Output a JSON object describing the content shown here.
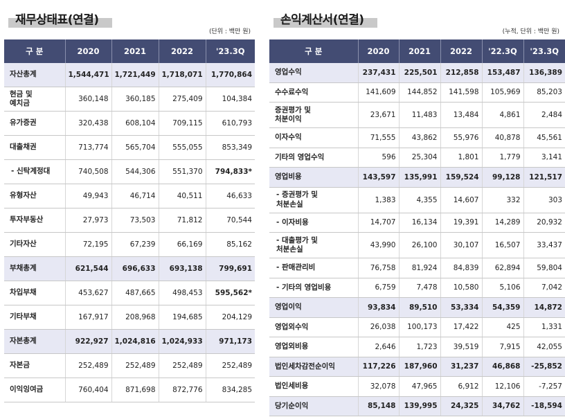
{
  "balance": {
    "title": "재무상태표(연결)",
    "unit": "(단위 : 백만 원)",
    "headers": [
      "구 분",
      "2020",
      "2021",
      "2022",
      "'23.3Q"
    ],
    "rows": [
      {
        "label": "자산총계",
        "v": [
          "1,544,471",
          "1,721,449",
          "1,718,071",
          "1,770,864"
        ]
      },
      {
        "label": "현금 및\n예치금",
        "v": [
          "360,148",
          "360,185",
          "275,409",
          "104,384"
        ]
      },
      {
        "label": "유가증권",
        "v": [
          "320,438",
          "608,104",
          "709,115",
          "610,793"
        ]
      },
      {
        "label": "대출채권",
        "v": [
          "713,774",
          "565,704",
          "555,055",
          "853,349"
        ]
      },
      {
        "label": "- 신탁계정대",
        "v": [
          "740,508",
          "544,306",
          "551,370",
          "794,833*"
        ]
      },
      {
        "label": "유형자산",
        "v": [
          "49,943",
          "46,714",
          "40,511",
          "46,633"
        ]
      },
      {
        "label": "투자부동산",
        "v": [
          "27,973",
          "73,503",
          "71,812",
          "70,544"
        ]
      },
      {
        "label": "기타자산",
        "v": [
          "72,195",
          "67,239",
          "66,169",
          "85,162"
        ]
      },
      {
        "label": "부채총계",
        "v": [
          "621,544",
          "696,633",
          "693,138",
          "799,691"
        ]
      },
      {
        "label": "차입부채",
        "v": [
          "453,627",
          "487,665",
          "498,453",
          "595,562*"
        ]
      },
      {
        "label": "기타부채",
        "v": [
          "167,917",
          "208,968",
          "194,685",
          "204,129"
        ]
      },
      {
        "label": "자본총계",
        "v": [
          "922,927",
          "1,024,816",
          "1,024,933",
          "971,173"
        ]
      },
      {
        "label": "자본금",
        "v": [
          "252,489",
          "252,489",
          "252,489",
          "252,489"
        ]
      },
      {
        "label": "이익잉여금",
        "v": [
          "760,404",
          "871,698",
          "872,776",
          "834,285"
        ]
      }
    ]
  },
  "income": {
    "title": "손익계산서(연결)",
    "unit": "(누적, 단위 : 백만 원)",
    "headers": [
      "구 분",
      "2020",
      "2021",
      "2022",
      "'22.3Q",
      "'23.3Q"
    ],
    "rows": [
      {
        "label": "영업수익",
        "v": [
          "237,431",
          "225,501",
          "212,858",
          "153,487",
          "136,389"
        ]
      },
      {
        "label": "수수료수익",
        "v": [
          "141,609",
          "144,852",
          "141,598",
          "105,969",
          "85,203"
        ]
      },
      {
        "label": "증권평가 및\n처분이익",
        "v": [
          "23,671",
          "11,483",
          "13,484",
          "4,861",
          "2,484"
        ]
      },
      {
        "label": "이자수익",
        "v": [
          "71,555",
          "43,862",
          "55,976",
          "40,878",
          "45,561"
        ]
      },
      {
        "label": "기타의 영업수익",
        "v": [
          "596",
          "25,304",
          "1,801",
          "1,779",
          "3,141"
        ]
      },
      {
        "label": "영업비용",
        "v": [
          "143,597",
          "135,991",
          "159,524",
          "99,128",
          "121,517"
        ]
      },
      {
        "label": "- 증권평가 및\n  처분손실",
        "v": [
          "1,383",
          "4,355",
          "14,607",
          "332",
          "303"
        ]
      },
      {
        "label": "- 이자비용",
        "v": [
          "14,707",
          "16,134",
          "19,391",
          "14,289",
          "20,932"
        ]
      },
      {
        "label": "- 대출평가 및\n  처분손실",
        "v": [
          "43,990",
          "26,100",
          "30,107",
          "16,507",
          "33,437"
        ]
      },
      {
        "label": "- 판매관리비",
        "v": [
          "76,758",
          "81,924",
          "84,839",
          "62,894",
          "59,804"
        ]
      },
      {
        "label": "- 기타의 영업비용",
        "v": [
          "6,759",
          "7,478",
          "10,580",
          "5,106",
          "7,042"
        ]
      },
      {
        "label": "영업이익",
        "v": [
          "93,834",
          "89,510",
          "53,334",
          "54,359",
          "14,872"
        ]
      },
      {
        "label": "영업외수익",
        "v": [
          "26,038",
          "100,173",
          "17,422",
          "425",
          "1,331"
        ]
      },
      {
        "label": "영업외비용",
        "v": [
          "2,646",
          "1,723",
          "39,519",
          "7,915",
          "42,055"
        ]
      },
      {
        "label": "법인세차감전순이익",
        "v": [
          "117,226",
          "187,960",
          "31,237",
          "46,868",
          "-25,852"
        ]
      },
      {
        "label": "법인세비용",
        "v": [
          "32,078",
          "47,965",
          "6,912",
          "12,106",
          "-7,257"
        ]
      },
      {
        "label": "당기순이익",
        "v": [
          "85,148",
          "139,995",
          "24,325",
          "34,762",
          "-18,594"
        ]
      }
    ]
  }
}
